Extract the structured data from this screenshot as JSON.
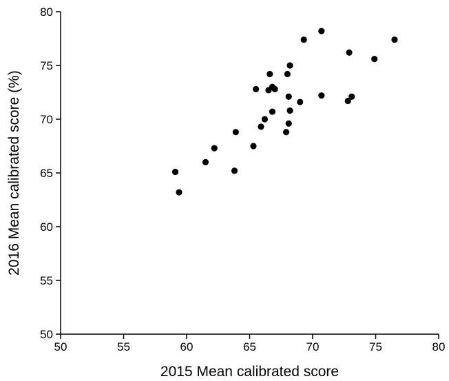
{
  "chart_data": {
    "type": "scatter",
    "title": "",
    "xlabel": "2015 Mean calibrated score",
    "ylabel": "2016 Mean calibrated score (%)",
    "xlim": [
      50,
      80
    ],
    "ylim": [
      50,
      80
    ],
    "x_ticks": [
      "50",
      "55",
      "60",
      "65",
      "70",
      "75",
      "80"
    ],
    "y_ticks": [
      "50",
      "55",
      "60",
      "65",
      "70",
      "75",
      "80"
    ],
    "grid": false,
    "legend": "none",
    "point_color": "#000000",
    "points": [
      {
        "x": 59.1,
        "y": 65.1
      },
      {
        "x": 59.4,
        "y": 63.2
      },
      {
        "x": 61.5,
        "y": 66.0
      },
      {
        "x": 62.2,
        "y": 67.3
      },
      {
        "x": 63.8,
        "y": 65.2
      },
      {
        "x": 63.9,
        "y": 68.8
      },
      {
        "x": 65.3,
        "y": 67.5
      },
      {
        "x": 65.5,
        "y": 72.8
      },
      {
        "x": 65.9,
        "y": 69.3
      },
      {
        "x": 66.2,
        "y": 70.0
      },
      {
        "x": 66.5,
        "y": 72.7
      },
      {
        "x": 66.6,
        "y": 74.2
      },
      {
        "x": 66.8,
        "y": 73.0
      },
      {
        "x": 67.0,
        "y": 72.8
      },
      {
        "x": 66.8,
        "y": 70.7
      },
      {
        "x": 67.9,
        "y": 68.8
      },
      {
        "x": 68.0,
        "y": 74.2
      },
      {
        "x": 68.1,
        "y": 72.1
      },
      {
        "x": 68.1,
        "y": 69.6
      },
      {
        "x": 68.2,
        "y": 75.0
      },
      {
        "x": 68.2,
        "y": 70.8
      },
      {
        "x": 69.0,
        "y": 71.6
      },
      {
        "x": 69.3,
        "y": 77.4
      },
      {
        "x": 70.7,
        "y": 72.2
      },
      {
        "x": 70.7,
        "y": 78.2
      },
      {
        "x": 72.8,
        "y": 71.7
      },
      {
        "x": 72.9,
        "y": 76.2
      },
      {
        "x": 73.1,
        "y": 72.1
      },
      {
        "x": 74.9,
        "y": 75.6
      },
      {
        "x": 76.5,
        "y": 77.4
      }
    ]
  }
}
